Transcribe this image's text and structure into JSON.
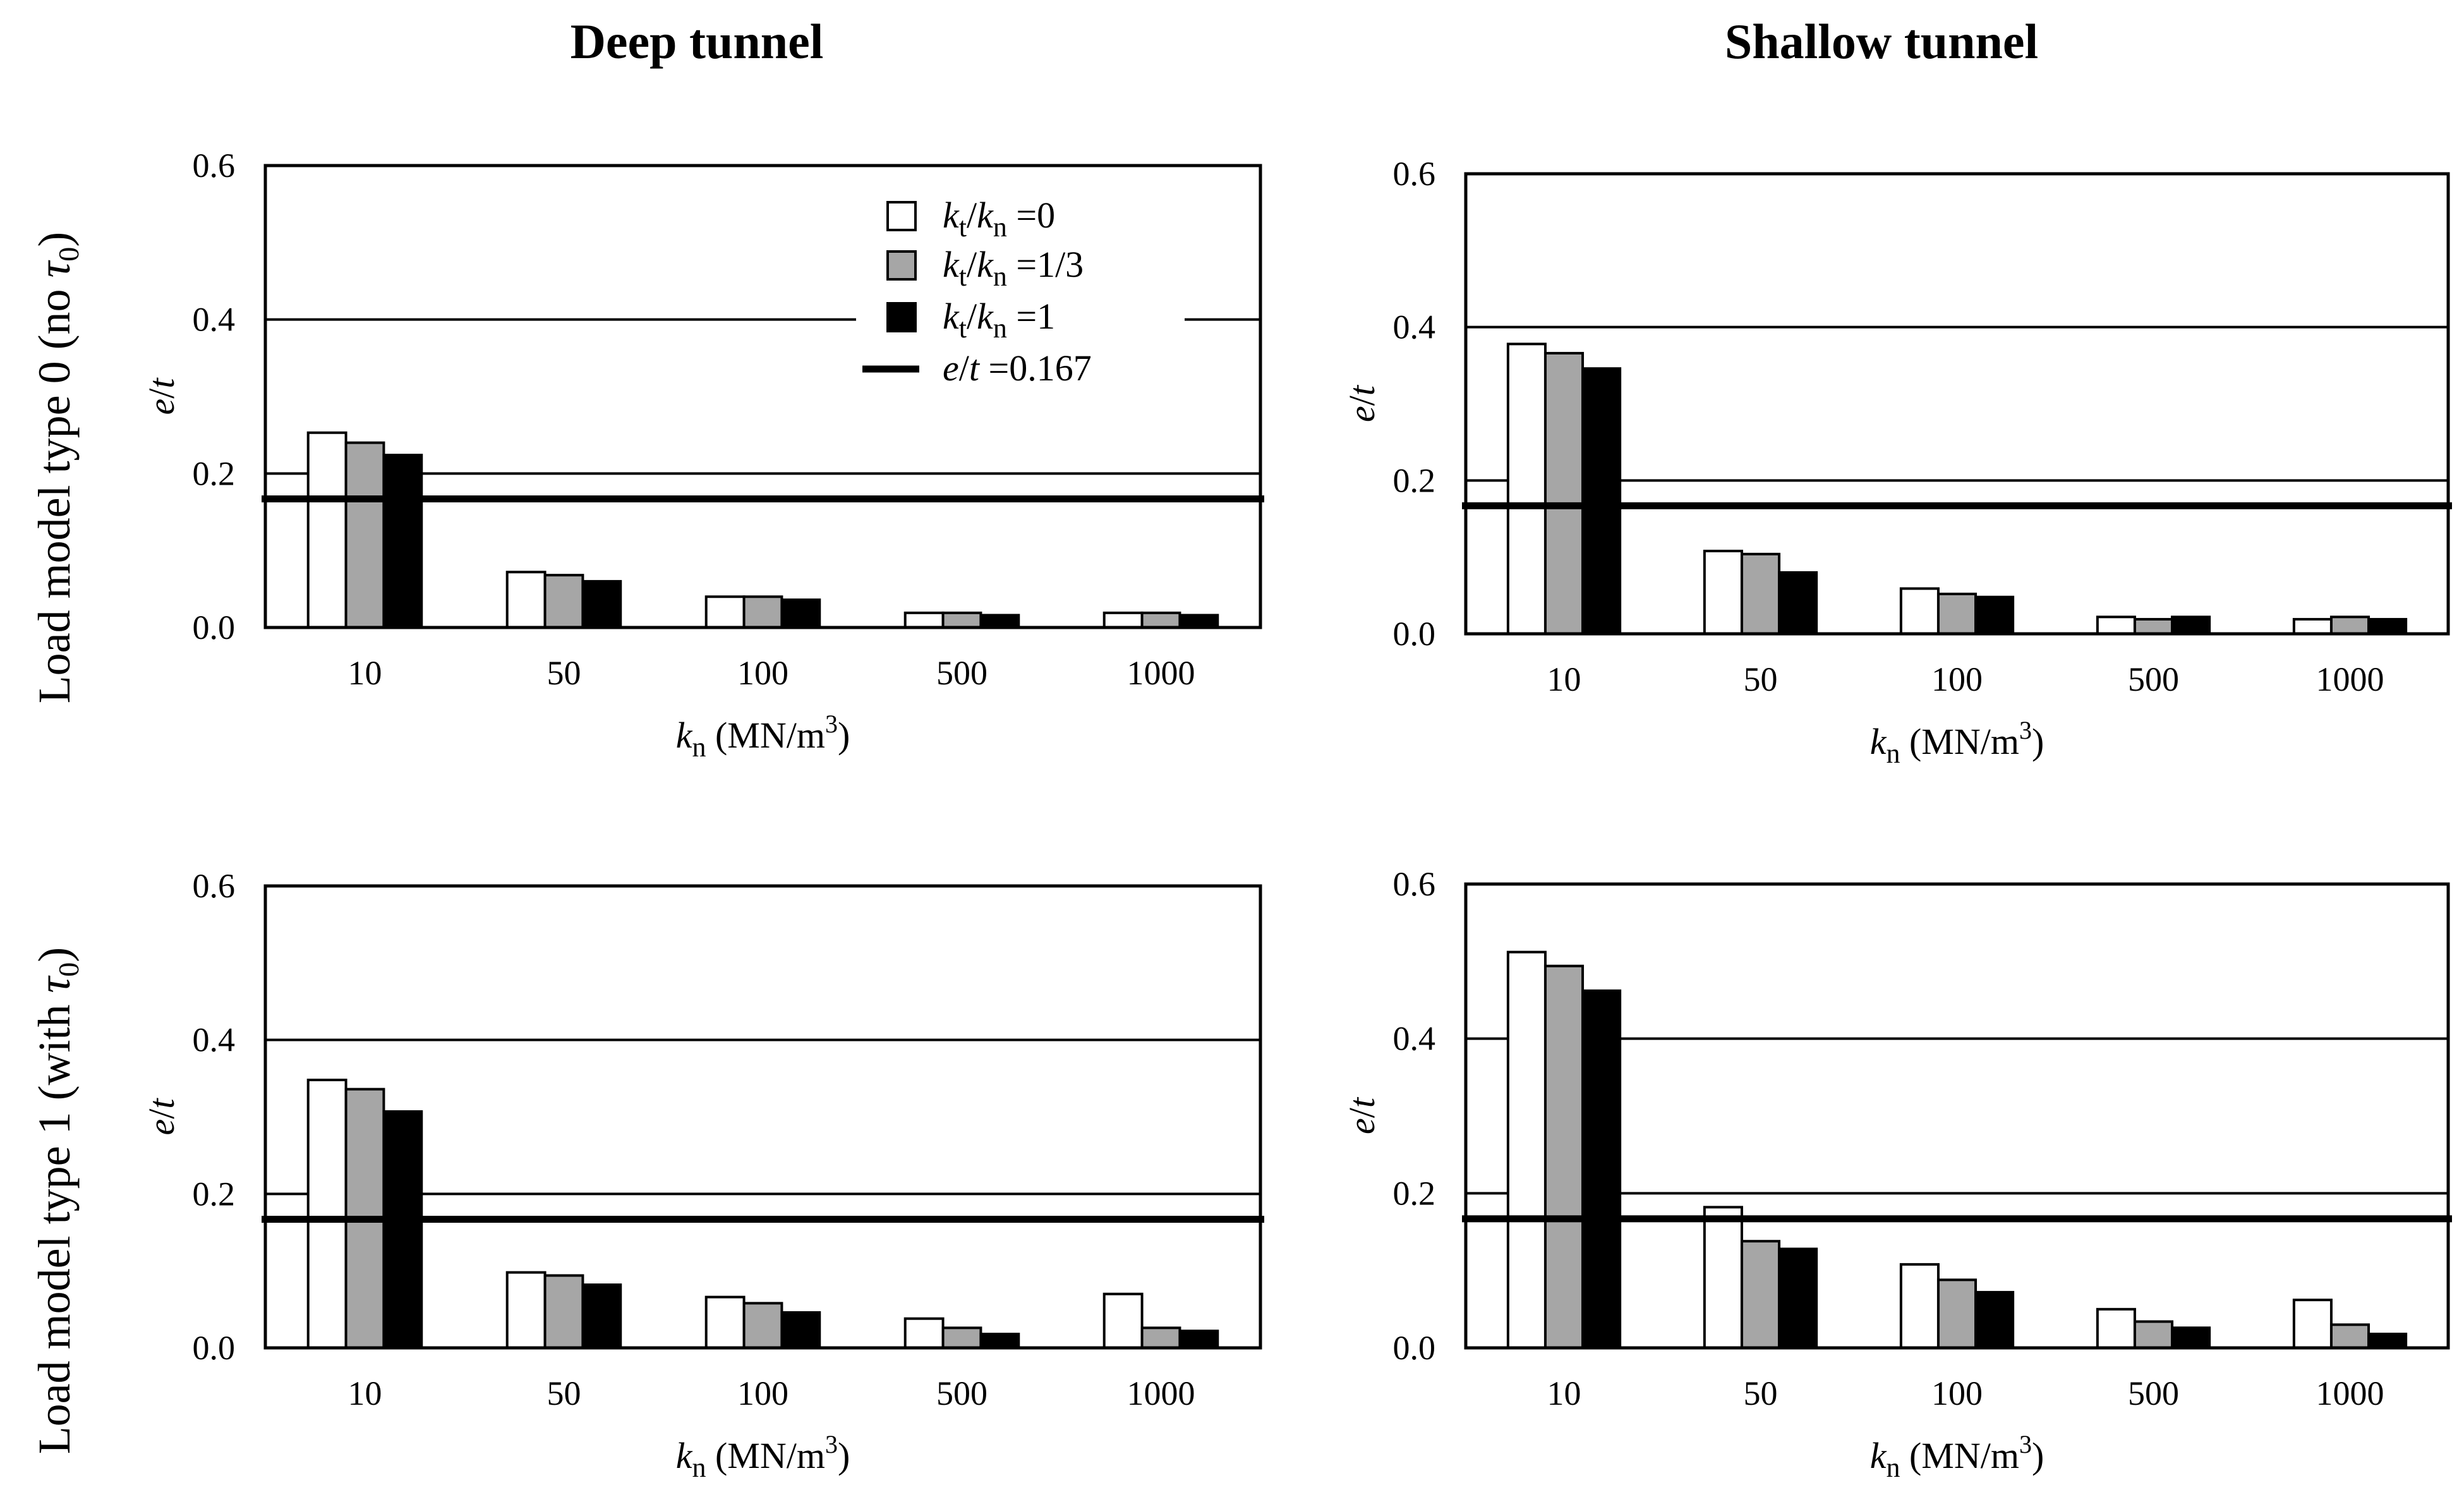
{
  "column_titles": [
    "Deep tunnel",
    "Shallow tunnel"
  ],
  "row_labels": [
    {
      "prefix": "Load model type 0 (no ",
      "symbol": "τ",
      "sub": "0",
      "suffix": ")"
    },
    {
      "prefix": "Load model type 1 (with ",
      "symbol": "τ",
      "sub": "0",
      "suffix": ")"
    }
  ],
  "colors": {
    "series": [
      "#ffffff",
      "#a6a6a6",
      "#000000"
    ],
    "stroke": "#000000"
  },
  "legend": {
    "items": [
      {
        "var1": "k",
        "sub1": "t",
        "sep": "/",
        "var2": "k",
        "sub2": "n",
        "value": " =0"
      },
      {
        "var1": "k",
        "sub1": "t",
        "sep": "/",
        "var2": "k",
        "sub2": "n",
        "value": " =1/3"
      },
      {
        "var1": "k",
        "sub1": "t",
        "sep": "/",
        "var2": "k",
        "sub2": "n",
        "value": " =1"
      }
    ],
    "line_item": {
      "var1": "e",
      "sep": "/",
      "var2": "t",
      "value": " =0.167"
    }
  },
  "chart_data": [
    {
      "type": "bar",
      "panel": "Deep tunnel / Load model type 0 (no τ0)",
      "categories": [
        "10",
        "50",
        "100",
        "500",
        "1000"
      ],
      "xlabel": {
        "var": "k",
        "sub": "n",
        "unit": " (MN/m",
        "sup": "3",
        "close": ")"
      },
      "ylabel": {
        "var1": "e",
        "sep": "/",
        "var2": "t"
      },
      "ylim": [
        0,
        0.6
      ],
      "yticks": [
        "0.0",
        "0.2",
        "0.4",
        "0.6"
      ],
      "yticks_values": [
        0,
        0.2,
        0.4,
        0.6
      ],
      "gridlines": [
        0.2,
        0.4
      ],
      "reference_line": 0.167,
      "series": [
        {
          "name": "kt/kn =0",
          "values": [
            0.253,
            0.072,
            0.04,
            0.019,
            0.019
          ]
        },
        {
          "name": "kt/kn =1/3",
          "values": [
            0.24,
            0.068,
            0.04,
            0.019,
            0.019
          ]
        },
        {
          "name": "kt/kn =1",
          "values": [
            0.224,
            0.06,
            0.036,
            0.016,
            0.016
          ]
        }
      ]
    },
    {
      "type": "bar",
      "panel": "Shallow tunnel / Load model type 0 (no τ0)",
      "categories": [
        "10",
        "50",
        "100",
        "500",
        "1000"
      ],
      "xlabel": {
        "var": "k",
        "sub": "n",
        "unit": " (MN/m",
        "sup": "3",
        "close": ")"
      },
      "ylabel": {
        "var1": "e",
        "sep": "/",
        "var2": "t"
      },
      "ylim": [
        0,
        0.6
      ],
      "yticks": [
        "0.0",
        "0.2",
        "0.4",
        "0.6"
      ],
      "yticks_values": [
        0,
        0.2,
        0.4,
        0.6
      ],
      "gridlines": [
        0.2,
        0.4
      ],
      "reference_line": 0.167,
      "series": [
        {
          "name": "kt/kn =0",
          "values": [
            0.378,
            0.108,
            0.059,
            0.022,
            0.019
          ]
        },
        {
          "name": "kt/kn =1/3",
          "values": [
            0.366,
            0.104,
            0.052,
            0.019,
            0.022
          ]
        },
        {
          "name": "kt/kn =1",
          "values": [
            0.346,
            0.08,
            0.048,
            0.022,
            0.019
          ]
        }
      ]
    },
    {
      "type": "bar",
      "panel": "Deep tunnel / Load model type 1 (with τ0)",
      "categories": [
        "10",
        "50",
        "100",
        "500",
        "1000"
      ],
      "xlabel": {
        "var": "k",
        "sub": "n",
        "unit": " (MN/m",
        "sup": "3",
        "close": ")"
      },
      "ylabel": {
        "var1": "e",
        "sep": "/",
        "var2": "t"
      },
      "ylim": [
        0,
        0.6
      ],
      "yticks": [
        "0.0",
        "0.2",
        "0.4",
        "0.6"
      ],
      "yticks_values": [
        0,
        0.2,
        0.4,
        0.6
      ],
      "gridlines": [
        0.2,
        0.4
      ],
      "reference_line": 0.167,
      "series": [
        {
          "name": "kt/kn =0",
          "values": [
            0.348,
            0.098,
            0.066,
            0.038,
            0.07
          ]
        },
        {
          "name": "kt/kn =1/3",
          "values": [
            0.336,
            0.094,
            0.058,
            0.026,
            0.026
          ]
        },
        {
          "name": "kt/kn =1",
          "values": [
            0.307,
            0.082,
            0.046,
            0.018,
            0.022
          ]
        }
      ]
    },
    {
      "type": "bar",
      "panel": "Shallow tunnel / Load model type 1 (with τ0)",
      "categories": [
        "10",
        "50",
        "100",
        "500",
        "1000"
      ],
      "xlabel": {
        "var": "k",
        "sub": "n",
        "unit": " (MN/m",
        "sup": "3",
        "close": ")"
      },
      "ylabel": {
        "var1": "e",
        "sep": "/",
        "var2": "t"
      },
      "ylim": [
        0,
        0.6
      ],
      "yticks": [
        "0.0",
        "0.2",
        "0.4",
        "0.6"
      ],
      "yticks_values": [
        0,
        0.2,
        0.4,
        0.6
      ],
      "gridlines": [
        0.2,
        0.4
      ],
      "reference_line": 0.167,
      "series": [
        {
          "name": "kt/kn =0",
          "values": [
            0.512,
            0.182,
            0.108,
            0.05,
            0.062
          ]
        },
        {
          "name": "kt/kn =1/3",
          "values": [
            0.494,
            0.138,
            0.088,
            0.034,
            0.03
          ]
        },
        {
          "name": "kt/kn =1",
          "values": [
            0.462,
            0.128,
            0.072,
            0.026,
            0.018
          ]
        }
      ]
    }
  ]
}
